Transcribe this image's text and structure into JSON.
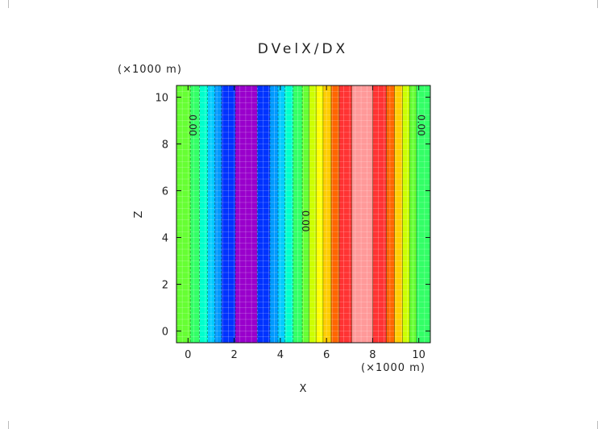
{
  "chart_data": {
    "type": "heatmap",
    "title": "DVelX/DX",
    "xlabel": "X",
    "ylabel": "Z",
    "x_unit_label": "(×1000 m)",
    "y_unit_label": "(×1000 m)",
    "xlim": [
      -0.5,
      10.5
    ],
    "ylim": [
      -0.5,
      10.5
    ],
    "x_ticks": [
      0,
      2,
      4,
      6,
      8,
      10
    ],
    "y_ticks": [
      0,
      2,
      4,
      6,
      8,
      10
    ],
    "x_tick_labels": [
      "0",
      "2",
      "4",
      "6",
      "8",
      "10"
    ],
    "y_tick_labels": [
      "0",
      "2",
      "4",
      "6",
      "8",
      "10"
    ],
    "grid": true,
    "bands": [
      {
        "x0": -0.5,
        "x1": 0.1,
        "color": "#66ff33"
      },
      {
        "x0": 0.1,
        "x1": 0.5,
        "color": "#33ff66"
      },
      {
        "x0": 0.5,
        "x1": 0.85,
        "color": "#00ffcc"
      },
      {
        "x0": 0.85,
        "x1": 1.15,
        "color": "#00ccff"
      },
      {
        "x0": 1.15,
        "x1": 1.45,
        "color": "#0099ff"
      },
      {
        "x0": 1.45,
        "x1": 2.05,
        "color": "#0033ff"
      },
      {
        "x0": 2.05,
        "x1": 3.0,
        "color": "#9900cc"
      },
      {
        "x0": 3.0,
        "x1": 3.55,
        "color": "#0033ff"
      },
      {
        "x0": 3.55,
        "x1": 3.9,
        "color": "#0099ff"
      },
      {
        "x0": 3.9,
        "x1": 4.2,
        "color": "#00ccff"
      },
      {
        "x0": 4.2,
        "x1": 4.55,
        "color": "#00ffcc"
      },
      {
        "x0": 4.55,
        "x1": 4.95,
        "color": "#33ff66"
      },
      {
        "x0": 4.95,
        "x1": 5.25,
        "color": "#66ff33"
      },
      {
        "x0": 5.25,
        "x1": 5.55,
        "color": "#ccff00"
      },
      {
        "x0": 5.55,
        "x1": 5.85,
        "color": "#ffff00"
      },
      {
        "x0": 5.85,
        "x1": 6.2,
        "color": "#ffcc00"
      },
      {
        "x0": 6.2,
        "x1": 6.55,
        "color": "#ff6600"
      },
      {
        "x0": 6.55,
        "x1": 7.1,
        "color": "#ff3333"
      },
      {
        "x0": 7.1,
        "x1": 8.0,
        "color": "#ff9999"
      },
      {
        "x0": 8.0,
        "x1": 8.6,
        "color": "#ff3333"
      },
      {
        "x0": 8.6,
        "x1": 8.95,
        "color": "#ff6600"
      },
      {
        "x0": 8.95,
        "x1": 9.3,
        "color": "#ffcc00"
      },
      {
        "x0": 9.3,
        "x1": 9.6,
        "color": "#ccff00"
      },
      {
        "x0": 9.6,
        "x1": 9.9,
        "color": "#66ff33"
      },
      {
        "x0": 9.9,
        "x1": 10.5,
        "color": "#33ff66"
      }
    ],
    "contour_labels": [
      {
        "text": "0.00",
        "x": 0.05,
        "z": 8.8
      },
      {
        "text": "0.00",
        "x": 4.95,
        "z": 4.7
      },
      {
        "text": "0.00",
        "x": 9.95,
        "z": 8.8
      }
    ]
  }
}
